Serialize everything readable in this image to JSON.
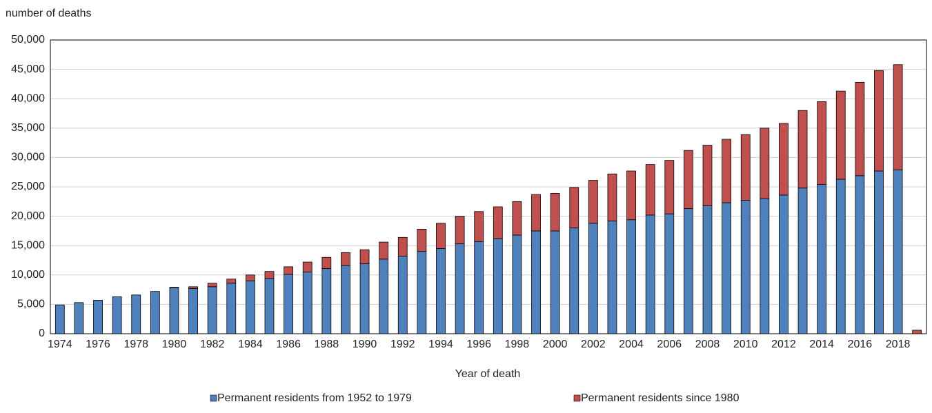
{
  "chart_data": {
    "type": "stacked-bar",
    "y_label": "number of deaths",
    "x_label": "Year of death",
    "categories": [
      "1974",
      null,
      "1976",
      null,
      "1978",
      null,
      "1980",
      null,
      "1982",
      null,
      "1984",
      null,
      "1986",
      null,
      "1988",
      null,
      "1990",
      null,
      "1992",
      null,
      "1994",
      null,
      "1996",
      null,
      "1998",
      null,
      "2000",
      null,
      "2002",
      null,
      "2004",
      null,
      "2006",
      null,
      "2008",
      null,
      "2010",
      null,
      "2012",
      null,
      "2014",
      null,
      "2016",
      null,
      "2018",
      null
    ],
    "series": [
      {
        "name": "Permanent residents from 1952 to 1979",
        "color": "#4f81bd",
        "values": [
          4900,
          5300,
          5700,
          6300,
          6600,
          7200,
          7800,
          7700,
          8000,
          8600,
          9000,
          9400,
          10100,
          10500,
          11100,
          11600,
          11900,
          12700,
          13200,
          14000,
          14500,
          15300,
          15700,
          16200,
          16800,
          17500,
          17500,
          18000,
          18800,
          19200,
          19400,
          20200,
          20400,
          21300,
          21800,
          22300,
          22700,
          23000,
          23600,
          24800,
          25400,
          26300,
          26900,
          27700,
          27900,
          0
        ]
      },
      {
        "name": "Permanent residents since 1980",
        "color": "#c0504d",
        "values": [
          0,
          0,
          0,
          0,
          0,
          0,
          100,
          300,
          600,
          700,
          1000,
          1200,
          1300,
          1700,
          1900,
          2200,
          2400,
          2900,
          3200,
          3800,
          4300,
          4700,
          5100,
          5400,
          5700,
          6200,
          6400,
          6900,
          7300,
          8000,
          8300,
          8600,
          9100,
          9900,
          10300,
          10800,
          11200,
          12000,
          12200,
          13200,
          14100,
          15000,
          15900,
          17100,
          17900,
          600
        ]
      }
    ],
    "ylim": [
      0,
      50000
    ],
    "yticks": [
      0,
      {
        "value": 5000,
        "label": "5,000"
      },
      {
        "value": 10000,
        "label": "10,000"
      },
      {
        "value": 15000,
        "label": "15,000"
      },
      {
        "value": 20000,
        "label": "20,000"
      },
      {
        "value": 25000,
        "label": "25,000"
      },
      {
        "value": 30000,
        "label": "30,000"
      },
      {
        "value": 35000,
        "label": "35,000"
      },
      {
        "value": 40000,
        "label": "40,000"
      },
      {
        "value": 45000,
        "label": "45,000"
      },
      {
        "value": 50000,
        "label": "50,000"
      }
    ],
    "grid": true,
    "legend": "bottom"
  }
}
